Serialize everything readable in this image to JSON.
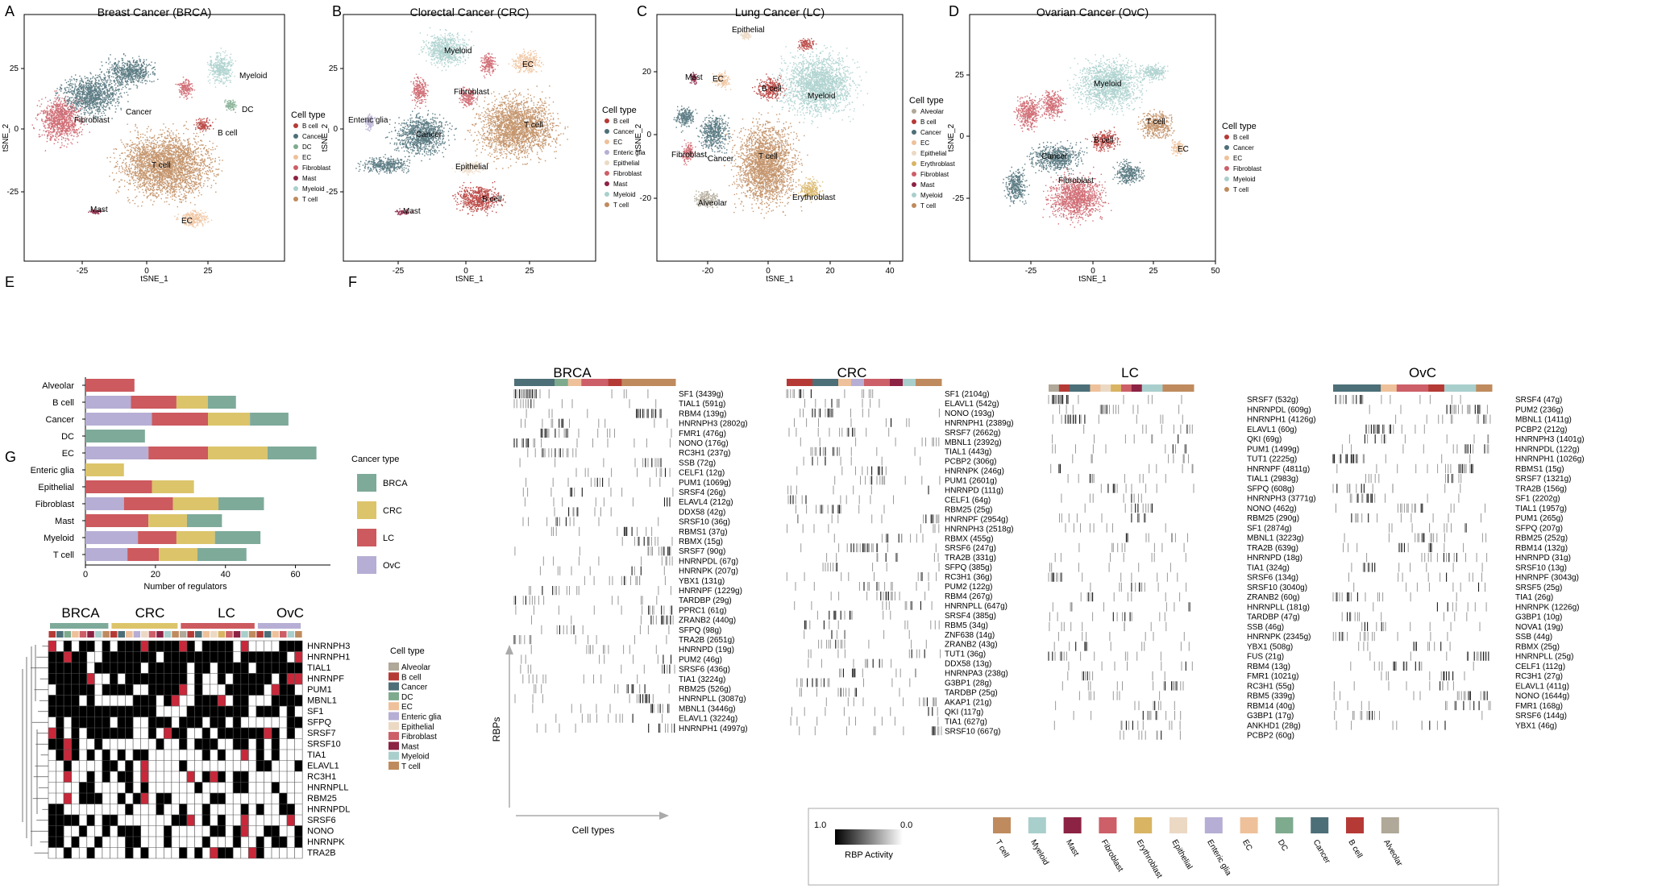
{
  "colors": {
    "B cell": "#b53a36",
    "Cancer": "#4d6f78",
    "DC": "#7eaa8e",
    "EC": "#eec19a",
    "Enteric glia": "#b6aed4",
    "Epithelial": "#ecd9c4",
    "Erythroblast": "#d8b463",
    "Fibroblast": "#cc5f68",
    "Mast": "#8c2344",
    "Myeloid": "#a9cfcc",
    "T cell": "#bf8b5e",
    "Alveolar": "#b0a898"
  },
  "panel_letters": [
    "A",
    "B",
    "C",
    "D",
    "E",
    "F",
    "G"
  ],
  "tsne": [
    {
      "letter": "A",
      "title": "Breast Cancer (BRCA)",
      "xlabel": "tSNE_1",
      "ylabel": "tSNE_2",
      "xticks": [
        "-25",
        "0",
        "25"
      ],
      "yticks": [
        "25",
        "0",
        "-25"
      ],
      "legend_title": "Cell type",
      "legend": [
        "B cell",
        "Cancer",
        "DC",
        "EC",
        "Fibroblast",
        "Mast",
        "Myeloid",
        "T cell"
      ],
      "clusters": [
        {
          "type": "T cell",
          "label": "T cell"
        },
        {
          "type": "Cancer",
          "label": "Cancer"
        },
        {
          "type": "Fibroblast",
          "label": "Fibroblast"
        },
        {
          "type": "Myeloid",
          "label": "Myeloid"
        },
        {
          "type": "DC",
          "label": "DC"
        },
        {
          "type": "B cell",
          "label": "B cell"
        },
        {
          "type": "Mast",
          "label": "Mast"
        },
        {
          "type": "EC",
          "label": "EC"
        }
      ]
    },
    {
      "letter": "B",
      "title": "Clorectal Cancer (CRC)",
      "xlabel": "tSNE_1",
      "ylabel": "tSNE_2",
      "xticks": [
        "-25",
        "0",
        "25"
      ],
      "yticks": [
        "25",
        "0",
        "-25"
      ],
      "legend_title": "Cell type",
      "legend": [
        "B cell",
        "Cancer",
        "EC",
        "Enteric glia",
        "Epithelial",
        "Fibroblast",
        "Mast",
        "Myeloid",
        "T cell"
      ],
      "clusters": [
        {
          "type": "Myeloid",
          "label": "Myeloid"
        },
        {
          "type": "EC",
          "label": "EC"
        },
        {
          "type": "Fibroblast",
          "label": "Fibroblast"
        },
        {
          "type": "T cell",
          "label": "T cell"
        },
        {
          "type": "Cancer",
          "label": "Cancer"
        },
        {
          "type": "Enteric glia",
          "label": "Enteric glia"
        },
        {
          "type": "Epithelial",
          "label": "Epithelial"
        },
        {
          "type": "B cell",
          "label": "B cell"
        },
        {
          "type": "Mast",
          "label": "Mast"
        }
      ]
    },
    {
      "letter": "C",
      "title": "Lung Cancer (LC)",
      "xlabel": "tSNE_1",
      "ylabel": "tSNE_2",
      "xticks": [
        "-20",
        "0",
        "20",
        "40"
      ],
      "yticks": [
        "20",
        "0",
        "-20"
      ],
      "legend_title": "Cell type",
      "legend": [
        "Alveolar",
        "B cell",
        "Cancer",
        "EC",
        "Epithelial",
        "Erythroblast",
        "Fibroblast",
        "Mast",
        "Myeloid",
        "T cell"
      ],
      "clusters": [
        {
          "type": "Epithelial",
          "label": "Epithelial"
        },
        {
          "type": "Mast",
          "label": "Mast"
        },
        {
          "type": "EC",
          "label": "EC"
        },
        {
          "type": "B cell",
          "label": "B cell"
        },
        {
          "type": "Myeloid",
          "label": "Myeloid"
        },
        {
          "type": "Fibroblast",
          "label": "Fibroblast"
        },
        {
          "type": "Cancer",
          "label": "Cancer"
        },
        {
          "type": "T cell",
          "label": "T cell"
        },
        {
          "type": "Erythroblast",
          "label": "Erythroblast"
        },
        {
          "type": "Alveolar",
          "label": "Alveolar"
        }
      ]
    },
    {
      "letter": "D",
      "title": "Ovarian Cancer (OvC)",
      "xlabel": "tSNE_1",
      "ylabel": "tSNE_2",
      "xticks": [
        "-25",
        "0",
        "25",
        "50"
      ],
      "yticks": [
        "25",
        "0",
        "-25"
      ],
      "legend_title": "Cell type",
      "legend": [
        "B cell",
        "Cancer",
        "EC",
        "Fibroblast",
        "Myeloid",
        "T cell"
      ],
      "clusters": [
        {
          "type": "Myeloid",
          "label": "Myeloid"
        },
        {
          "type": "T cell",
          "label": "T cell"
        },
        {
          "type": "B cell",
          "label": "B cell"
        },
        {
          "type": "EC",
          "label": "EC"
        },
        {
          "type": "Cancer",
          "label": "Cancer"
        },
        {
          "type": "Fibroblast",
          "label": "Fibroblast"
        }
      ]
    }
  ],
  "chart_data": {
    "type": "bar",
    "orientation": "horizontal",
    "stacked": true,
    "categories": [
      "Alveolar",
      "B cell",
      "Cancer",
      "DC",
      "EC",
      "Enteric glia",
      "Epithelial",
      "Fibroblast",
      "Mast",
      "Myeloid",
      "T cell"
    ],
    "series": [
      {
        "name": "OvC",
        "values": [
          0,
          13,
          19,
          0,
          18,
          0,
          0,
          11,
          0,
          15,
          12
        ]
      },
      {
        "name": "LC",
        "values": [
          14,
          13,
          16,
          0,
          17,
          0,
          19,
          14,
          18,
          11,
          9
        ]
      },
      {
        "name": "CRC",
        "values": [
          0,
          9,
          12,
          0,
          17,
          11,
          12,
          13,
          11,
          11,
          11
        ]
      },
      {
        "name": "BRCA",
        "values": [
          0,
          8,
          11,
          17,
          14,
          0,
          0,
          13,
          10,
          13,
          14
        ]
      }
    ],
    "xlabel": "Number of regulators",
    "xticks": [
      "0",
      "20",
      "40",
      "60"
    ],
    "xlim": [
      0,
      70
    ],
    "legend_title": "Cancer type",
    "legend": [
      "BRCA",
      "CRC",
      "LC",
      "OvC"
    ],
    "legend_colors": {
      "BRCA": "#7eaa9a",
      "CRC": "#dcc46a",
      "LC": "#cc5a5e",
      "OvC": "#b6aed4"
    }
  },
  "heatmaps": {
    "groups": [
      {
        "name": "BRCA",
        "bar": [
          "Cancer",
          "Cancer",
          "Cancer",
          "DC",
          "EC",
          "Fibroblast",
          "Fibroblast",
          "B cell",
          "T cell",
          "T cell",
          "T cell",
          "T cell"
        ],
        "genes": [
          "SF1 (3439g)",
          "TIAL1 (591g)",
          "RBM4 (139g)",
          "HNRNPH3 (2802g)",
          "FMR1 (476g)",
          "NONO (176g)",
          "RC3H1 (237g)",
          "SSB (72g)",
          "CELF1 (12g)",
          "PUM1 (1069g)",
          "SRSF4 (26g)",
          "ELAVL4 (212g)",
          "DDX58 (42g)",
          "SRSF10 (36g)",
          "RBMS1 (37g)",
          "RBMX (15g)",
          "SRSF7 (90g)",
          "HNRNPDL (67g)",
          "HNRNPK (207g)",
          "YBX1 (131g)",
          "HNRNPF (1229g)",
          "TARDBP (29g)",
          "PPRC1 (61g)",
          "ZRANB2 (440g)",
          "SFPQ (98g)",
          "TRA2B (2651g)",
          "HNRNPD (19g)",
          "PUM2 (46g)",
          "SRSF6 (436g)",
          "TIA1 (3224g)",
          "RBM25 (526g)",
          "HNRNPLL (3087g)",
          "MBNL1 (3446g)",
          "ELAVL1 (3224g)",
          "HNRNPH1 (4997g)"
        ]
      },
      {
        "name": "CRC",
        "bar": [
          "B cell",
          "B cell",
          "Cancer",
          "Cancer",
          "EC",
          "Enteric glia",
          "Fibroblast",
          "Fibroblast",
          "Mast",
          "Myeloid",
          "T cell",
          "T cell"
        ],
        "genes": [
          "SF1 (2104g)",
          "ELAVL1 (542g)",
          "NONO (193g)",
          "HNRNPH1 (2389g)",
          "SRSF7 (2662g)",
          "MBNL1 (2392g)",
          "TIAL1 (443g)",
          "PCBP2 (306g)",
          "HNRNPK (246g)",
          "PUM1 (2601g)",
          "HNRNPD (111g)",
          "CELF1 (64g)",
          "RBM25 (25g)",
          "HNRNPF (2954g)",
          "HNRNPH3 (2518g)",
          "RBMX (455g)",
          "SRSF6 (247g)",
          "TRA2B (331g)",
          "SFPQ (385g)",
          "RC3H1 (36g)",
          "PUM2 (122g)",
          "RBM4 (267g)",
          "HNRNPLL (647g)",
          "SRSF4 (385g)",
          "RBM5 (34g)",
          "ZNF638 (14g)",
          "ZRANB2 (43g)",
          "TUT1 (36g)",
          "DDX58 (13g)",
          "HNRNPA3 (238g)",
          "G3BP1 (28g)",
          "TARDBP (25g)",
          "AKAP1 (21g)",
          "QKI (117g)",
          "TIA1 (627g)",
          "SRSF10 (667g)"
        ]
      },
      {
        "name": "LC",
        "bar": [
          "Alveolar",
          "B cell",
          "Cancer",
          "Cancer",
          "EC",
          "Epithelial",
          "Erythroblast",
          "Fibroblast",
          "Mast",
          "Myeloid",
          "Myeloid",
          "T cell",
          "T cell",
          "T cell"
        ],
        "genes": [
          "SRSF7 (532g)",
          "HNRNPDL (609g)",
          "HNRNPH1 (4126g)",
          "ELAVL1 (60g)",
          "QKI (69g)",
          "PUM1 (1499g)",
          "TUT1 (2225g)",
          "HNRNPF (4811g)",
          "TIAL1 (2983g)",
          "SFPQ (608g)",
          "HNRNPH3 (3771g)",
          "NONO (462g)",
          "RBM25 (290g)",
          "SF1 (2874g)",
          "MBNL1 (3223g)",
          "TRA2B (639g)",
          "HNRNPD (18g)",
          "TIA1 (324g)",
          "SRSF6 (134g)",
          "SRSF10 (3040g)",
          "ZRANB2 (60g)",
          "HNRNPLL (181g)",
          "TARDBP (47g)",
          "SSB (46g)",
          "HNRNPK (2345g)",
          "YBX1 (508g)",
          "FUS (21g)",
          "RBM4 (13g)",
          "FMR1 (1021g)",
          "RC3H1 (55g)",
          "RBM5 (339g)",
          "RBM14 (40g)",
          "G3BP1 (17g)",
          "ANKHD1 (28g)",
          "PCBP2 (60g)"
        ]
      },
      {
        "name": "OvC",
        "bar": [
          "Cancer",
          "Cancer",
          "Cancer",
          "EC",
          "Fibroblast",
          "Fibroblast",
          "B cell",
          "Myeloid",
          "Myeloid",
          "T cell"
        ],
        "genes": [
          "SRSF4 (47g)",
          "PUM2 (236g)",
          "MBNL1 (1411g)",
          "PCBP2 (212g)",
          "HNRNPH3 (1401g)",
          "HNRNPDL (122g)",
          "HNRNPH1 (1026g)",
          "RBMS1 (15g)",
          "SRSF7 (1321g)",
          "TRA2B (156g)",
          "SF1 (2202g)",
          "TIAL1 (1957g)",
          "PUM1 (265g)",
          "SFPQ (207g)",
          "RBM25 (252g)",
          "RBM14 (132g)",
          "HNRNPD (31g)",
          "SRSF10 (13g)",
          "HNRNPF (3043g)",
          "SRSF5 (25g)",
          "TIA1 (26g)",
          "HNRNPK (1226g)",
          "G3BP1 (10g)",
          "NOVA1 (19g)",
          "SSB (44g)",
          "RBMX (25g)",
          "HNRNPLL (25g)",
          "CELF1 (112g)",
          "RC3H1 (27g)",
          "ELAVL1 (411g)",
          "NONO (1644g)",
          "FMR1 (168g)",
          "SRSF6 (144g)",
          "YBX1 (46g)"
        ]
      }
    ],
    "axis_rbps": "RBPs",
    "axis_celltypes": "Cell types",
    "activity_label": "RBP Activity",
    "activity_max": "1.0",
    "activity_min": "0.0",
    "bottom_legend": [
      "T cell",
      "Myeloid",
      "Mast",
      "Fibroblast",
      "Erythroblast",
      "Epithelial",
      "Enteric glia",
      "EC",
      "DC",
      "Cancer",
      "B cell",
      "Alveolar"
    ]
  },
  "panel_g": {
    "groups": [
      {
        "name": "BRCA",
        "color": "#7eaa9a",
        "n": 8
      },
      {
        "name": "CRC",
        "color": "#dcc46a",
        "n": 9
      },
      {
        "name": "LC",
        "color": "#cc5a5e",
        "n": 10
      },
      {
        "name": "OvC",
        "color": "#b6aed4",
        "n": 6
      }
    ],
    "columns": [
      "B cell",
      "Cancer",
      "DC",
      "EC",
      "Fibroblast",
      "Mast",
      "Myeloid",
      "T cell",
      "B cell",
      "Cancer",
      "EC",
      "Enteric glia",
      "Epithelial",
      "Fibroblast",
      "Mast",
      "Myeloid",
      "T cell",
      "Alveolar",
      "B cell",
      "Cancer",
      "EC",
      "Epithelial",
      "Erythroblast",
      "Fibroblast",
      "Mast",
      "Myeloid",
      "T cell",
      "B cell",
      "Cancer",
      "EC",
      "Fibroblast",
      "Myeloid",
      "T cell"
    ],
    "rows": [
      "HNRNPH3",
      "HNRNPH1",
      "TIAL1",
      "HNRNPF",
      "PUM1",
      "MBNL1",
      "SF1",
      "SFPQ",
      "SRSF7",
      "SRSF10",
      "TIA1",
      "ELAVL1",
      "RC3H1",
      "HNRNPLL",
      "RBM25",
      "HNRNPDL",
      "SRSF6",
      "NONO",
      "HNRNPK",
      "TRA2B"
    ],
    "legend_title": "Cell type",
    "legend": [
      "Alveolar",
      "B cell",
      "Cancer",
      "DC",
      "EC",
      "Enteric glia",
      "Epithelial",
      "Fibroblast",
      "Mast",
      "Myeloid",
      "T cell"
    ]
  }
}
